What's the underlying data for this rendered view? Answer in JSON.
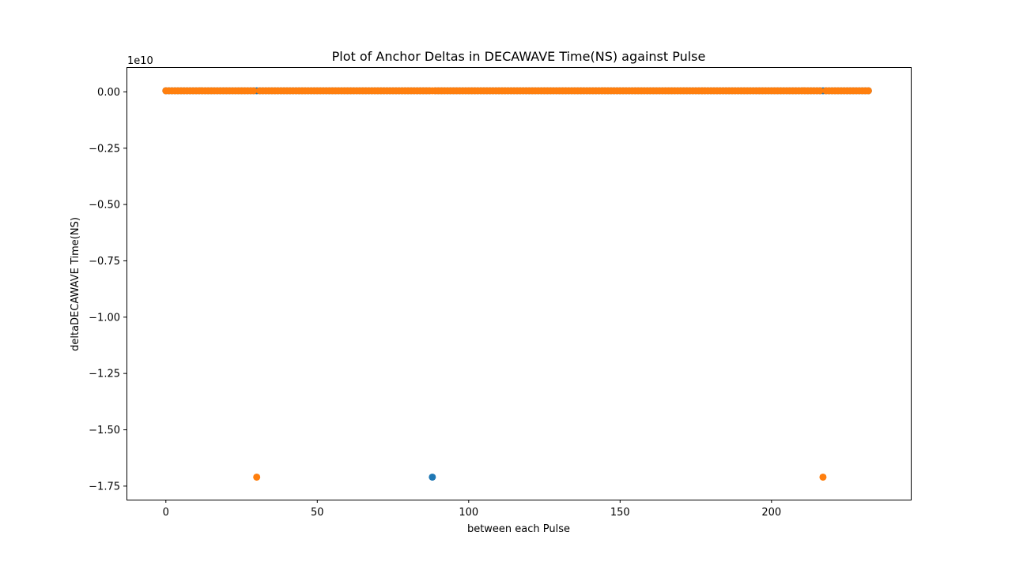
{
  "chart_data": {
    "type": "scatter",
    "title": "Plot of Anchor Deltas in DECAWAVE Time(NS) against Pulse",
    "xlabel": "between each Pulse",
    "ylabel": "deltaDECAWAVE Time(NS)",
    "offset_text": "1e10",
    "xlim": [
      -13,
      246
    ],
    "ylim": [
      -1.81,
      0.11
    ],
    "y_scale_factor": 10000000000.0,
    "xticks": [
      0,
      50,
      100,
      150,
      200
    ],
    "xtick_labels": [
      "0",
      "50",
      "100",
      "150",
      "200"
    ],
    "yticks": [
      0.0,
      -0.25,
      -0.5,
      -0.75,
      -1.0,
      -1.25,
      -1.5,
      -1.75
    ],
    "ytick_labels": [
      "0.00",
      "−0.25",
      "−0.50",
      "−0.75",
      "−1.00",
      "−1.25",
      "−1.50",
      "−1.75"
    ],
    "grid": false,
    "series": [
      {
        "color": "#1f77b4",
        "x_range": [
          0,
          232
        ],
        "baseline_value": 0.005,
        "outliers": [
          {
            "x": 88,
            "y": -1.71
          }
        ]
      },
      {
        "color": "#ff7f0e",
        "x_range": [
          0,
          232
        ],
        "baseline_value": 0.005,
        "outliers": [
          {
            "x": 30,
            "y": -1.71
          },
          {
            "x": 217,
            "y": -1.71
          }
        ]
      }
    ]
  }
}
